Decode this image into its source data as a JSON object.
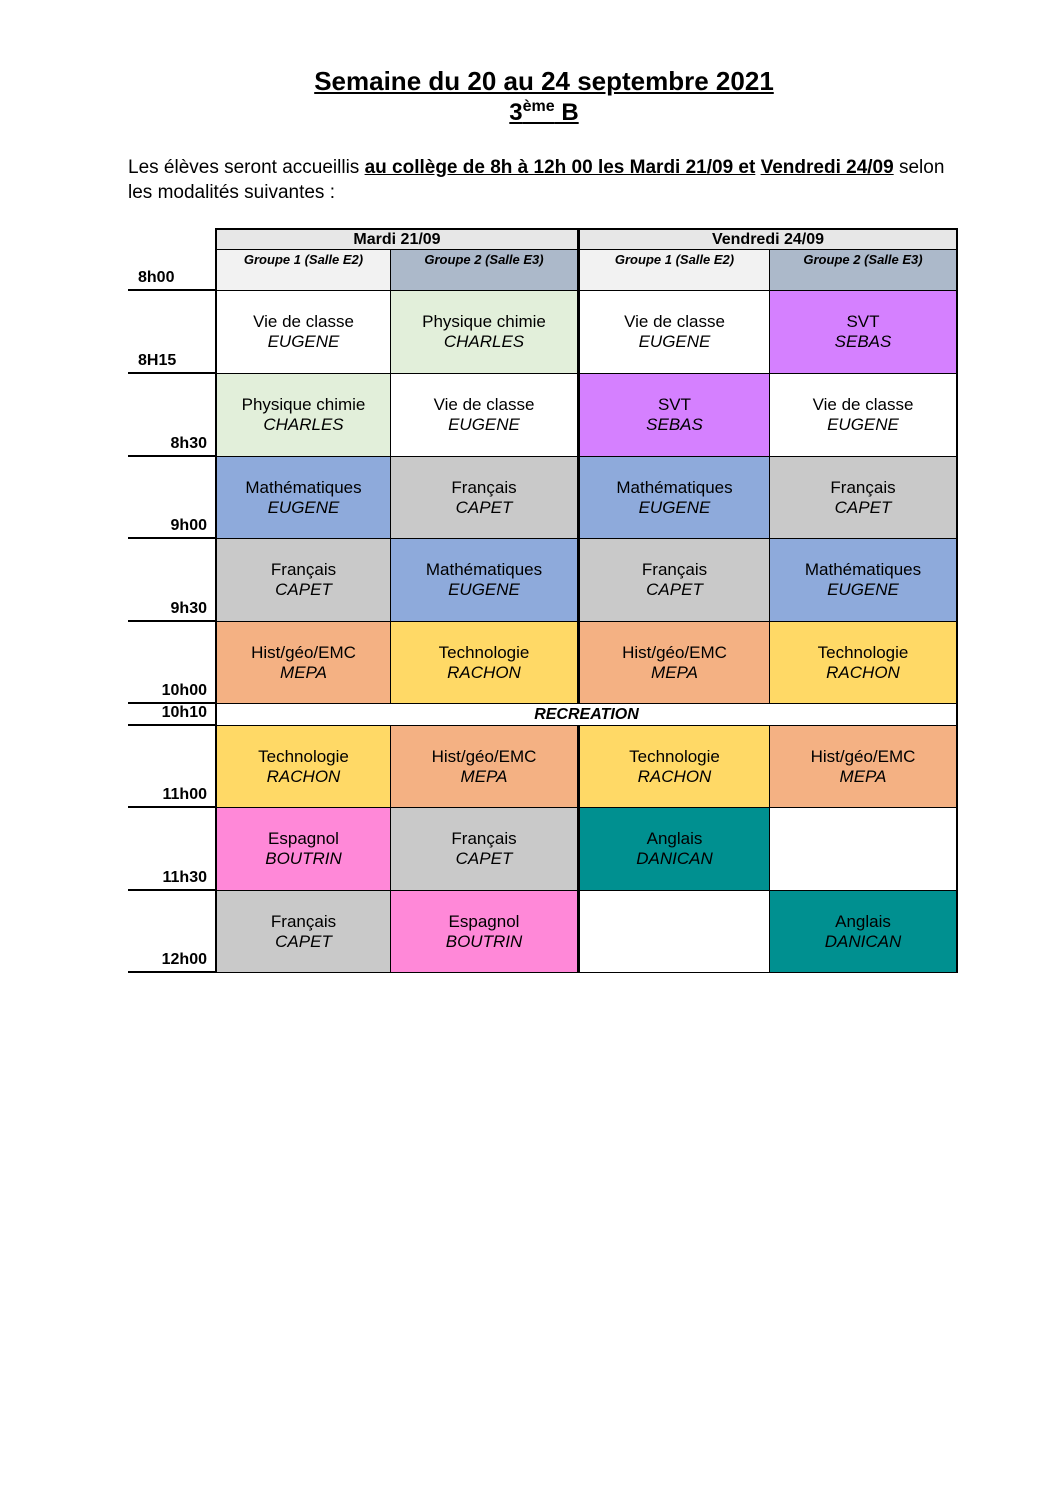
{
  "title": "Semaine du 20 au 24 septembre 2021",
  "class": {
    "num": "3",
    "sup": "ème",
    "letter": " B"
  },
  "intro": {
    "p1": "Les élèves seront accueillis ",
    "b1": "au collège de 8h à 12h 00  les Mardi 21/09  et",
    "p2": " ",
    "b2": "Vendredi 24/09",
    "p3": " selon les modalités suivantes :"
  },
  "days": [
    "Mardi  21/09",
    "Vendredi 24/09"
  ],
  "groups": [
    "Groupe  1 (Salle E2)",
    "Groupe  2 (Salle E3)",
    "Groupe  1 (Salle E2)",
    "Groupe  2 (Salle E3)"
  ],
  "header_time": "8h00",
  "recreation": {
    "time": "10h10",
    "label": "RECREATION"
  },
  "colors": {
    "white": "#ffffff",
    "physique": "#e2efda",
    "svt": "#d580ff",
    "maths": "#8eaadb",
    "francais": "#c9c9c9",
    "histoire": "#f4b183",
    "techno": "#ffd966",
    "espagnol": "#ff88d8",
    "anglais": "#009090"
  },
  "rows": [
    {
      "time": "8H15",
      "cells": [
        {
          "s": "Vie de classe",
          "t": "EUGENE",
          "c": "white"
        },
        {
          "s": "Physique chimie",
          "t": "CHARLES",
          "c": "physique"
        },
        {
          "s": "Vie de classe",
          "t": "EUGENE",
          "c": "white"
        },
        {
          "s": "SVT",
          "t": "SEBAS",
          "c": "svt"
        }
      ]
    },
    {
      "time": "8h30",
      "cells": [
        {
          "s": "Physique chimie",
          "t": "CHARLES",
          "c": "physique"
        },
        {
          "s": "Vie de classe",
          "t": "EUGENE",
          "c": "white"
        },
        {
          "s": "SVT",
          "t": "SEBAS",
          "c": "svt"
        },
        {
          "s": "Vie de classe",
          "t": "EUGENE",
          "c": "white"
        }
      ]
    },
    {
      "time": "9h00",
      "cells": [
        {
          "s": "Mathématiques",
          "t": "EUGENE",
          "c": "maths"
        },
        {
          "s": "Français",
          "t": "CAPET",
          "c": "francais"
        },
        {
          "s": "Mathématiques",
          "t": "EUGENE",
          "c": "maths"
        },
        {
          "s": "Français",
          "t": "CAPET",
          "c": "francais"
        }
      ]
    },
    {
      "time": "9h30",
      "cells": [
        {
          "s": "Français",
          "t": "CAPET",
          "c": "francais"
        },
        {
          "s": "Mathématiques",
          "t": "EUGENE",
          "c": "maths"
        },
        {
          "s": "Français",
          "t": "CAPET",
          "c": "francais"
        },
        {
          "s": "Mathématiques",
          "t": "EUGENE",
          "c": "maths"
        }
      ]
    },
    {
      "time": "10h00",
      "cells": [
        {
          "s": "Hist/géo/EMC",
          "t": "MEPA",
          "c": "histoire"
        },
        {
          "s": "Technologie",
          "t": "RACHON",
          "c": "techno"
        },
        {
          "s": "Hist/géo/EMC",
          "t": "MEPA",
          "c": "histoire"
        },
        {
          "s": "Technologie",
          "t": "RACHON",
          "c": "techno"
        }
      ]
    },
    {
      "time": "11h00",
      "cells": [
        {
          "s": "Technologie",
          "t": "RACHON",
          "c": "techno"
        },
        {
          "s": "Hist/géo/EMC",
          "t": "MEPA",
          "c": "histoire"
        },
        {
          "s": "Technologie",
          "t": "RACHON",
          "c": "techno"
        },
        {
          "s": "Hist/géo/EMC",
          "t": "MEPA",
          "c": "histoire"
        }
      ]
    },
    {
      "time": "11h30",
      "cells": [
        {
          "s": "Espagnol",
          "t": "BOUTRIN",
          "c": "espagnol"
        },
        {
          "s": "Français",
          "t": "CAPET",
          "c": "francais"
        },
        {
          "s": "Anglais",
          "t": "DANICAN",
          "c": "anglais"
        },
        {
          "s": "",
          "t": "",
          "c": "white"
        }
      ]
    },
    {
      "time": "12h00",
      "cells": [
        {
          "s": "Français",
          "t": "CAPET",
          "c": "francais"
        },
        {
          "s": "Espagnol",
          "t": "BOUTRIN",
          "c": "espagnol"
        },
        {
          "s": "",
          "t": "",
          "c": "white"
        },
        {
          "s": "Anglais",
          "t": "DANICAN",
          "c": "anglais"
        }
      ]
    }
  ]
}
